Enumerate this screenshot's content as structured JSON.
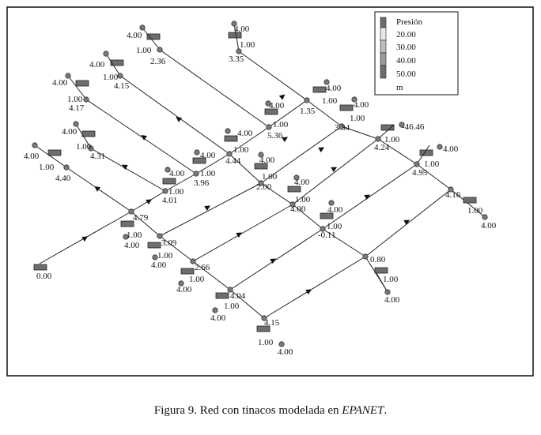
{
  "caption": {
    "prefix": "Figura 9. Red con tinacos modelada en ",
    "software": "EPANET",
    "suffix": "."
  },
  "legend": {
    "title": "Presión",
    "entries": [
      "20.00",
      "30.00",
      "40.00",
      "50.00"
    ],
    "unit": "m",
    "colors": [
      "#6e6e6e",
      "#e8e8e8",
      "#bdbdbd",
      "#9a9a9a",
      "#6e6e6e"
    ]
  },
  "colors": {
    "pipe": "#222222",
    "node": "#7a7a7a",
    "tank": "#6e6e6e"
  },
  "network": {
    "labels": [
      "4.00",
      "1.00",
      "2.36",
      "4.00",
      "1.00",
      "3.35",
      "4.00",
      "1.00",
      "4.15",
      "4.00",
      "1.00",
      "4.17",
      "4.00",
      "1.00",
      "4.31",
      "4.00",
      "1.00",
      "4.40",
      "4.00",
      "1.00",
      "1.35",
      "4.00",
      "1.00",
      "3.34",
      "4.00",
      "1.00",
      "5.36",
      "4.00",
      "1.00",
      "4.44",
      "4.00",
      "1.00",
      "3.96",
      "4.00",
      "1.00",
      "4.01",
      "-46.46",
      "1.00",
      "4.24",
      "4.00",
      "1.00",
      "4.95",
      "4.00",
      "1.00",
      "2.00",
      "4.00",
      "1.00",
      "4.00",
      "4.00",
      "1.00",
      "-0.11",
      "4.16",
      "1.00",
      "4.00",
      "4.79",
      "1.00",
      "4.00",
      "3.09",
      "1.00",
      "4.00",
      "2.66",
      "1.00",
      "4.00",
      "4.04",
      "1.00",
      "4.00",
      "4.15",
      "1.00",
      "4.00",
      "0.80",
      "1.00",
      "4.00",
      "0.00"
    ]
  }
}
